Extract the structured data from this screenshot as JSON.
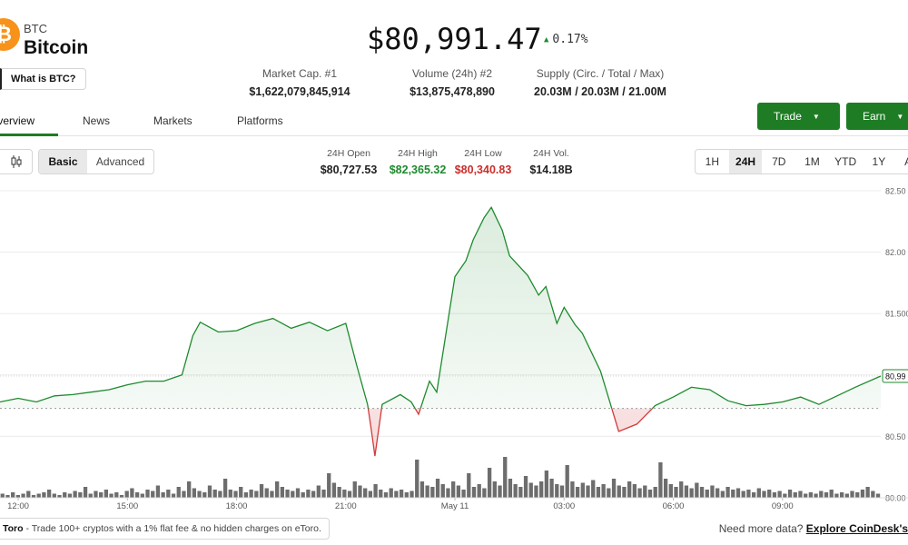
{
  "coin": {
    "logo_glyph": "₿",
    "symbol": "BTC",
    "name": "Bitcoin",
    "what_is_label": "What is BTC?",
    "brand_color": "#f7931a"
  },
  "quote": {
    "price": "$80,991.47",
    "change": "0.17%",
    "change_direction": "up"
  },
  "stats": [
    {
      "label": "Market Cap. #1",
      "value": "$1,622,079,845,914"
    },
    {
      "label": "Volume (24h) #2",
      "value": "$13,875,478,890"
    },
    {
      "label": "Supply (Circ. / Total / Max)",
      "value": "20.03M / 20.03M / 21.00M"
    }
  ],
  "tabs": [
    "Overview",
    "News",
    "Markets",
    "Platforms"
  ],
  "active_tab": "Overview",
  "buttons": {
    "trade": "Trade",
    "earn": "Earn"
  },
  "view_toggle": {
    "basic": "Basic",
    "advanced": "Advanced",
    "selected": "Basic"
  },
  "ohlc": [
    {
      "label": "24H Open",
      "value": "$80,727.53",
      "color": "#222222"
    },
    {
      "label": "24H High",
      "value": "$82,365.32",
      "color": "#1e8a2e"
    },
    {
      "label": "24H Low",
      "value": "$80,340.83",
      "color": "#c9302c"
    },
    {
      "label": "24H Vol.",
      "value": "$14.18B",
      "color": "#222222"
    }
  ],
  "ranges": [
    "1H",
    "24H",
    "7D",
    "1M",
    "YTD",
    "1Y",
    "A"
  ],
  "selected_range": "24H",
  "colors": {
    "up": "#1e8a2e",
    "down": "#d23a3a",
    "accent": "#1e7d24"
  },
  "chart_data": {
    "type": "line",
    "baseline": 80727.53,
    "ylim": [
      80000,
      82500
    ],
    "ytick_labels": [
      "82.50",
      "82.00",
      "81.500",
      "80,99",
      "80.50",
      "80.00"
    ],
    "ytick_values": [
      82500,
      82000,
      81500,
      80991.47,
      80500,
      80000
    ],
    "xlim": [
      11.5,
      35.7
    ],
    "xtick_labels": [
      "12:00",
      "15:00",
      "18:00",
      "21:00",
      "May 11",
      "03:00",
      "06:00",
      "09:00"
    ],
    "xtick_values": [
      12,
      15,
      18,
      21,
      24,
      27,
      30,
      33
    ],
    "price_x": [
      11.5,
      12.0,
      12.5,
      13.0,
      13.5,
      14.0,
      14.5,
      15.0,
      15.5,
      16.0,
      16.5,
      16.8,
      17.0,
      17.5,
      18.0,
      18.5,
      19.0,
      19.5,
      20.0,
      20.5,
      21.0,
      21.3,
      21.6,
      21.7,
      21.8,
      22.0,
      22.5,
      22.8,
      23.0,
      23.3,
      23.5,
      24.0,
      24.3,
      24.5,
      24.8,
      25.0,
      25.3,
      25.5,
      26.0,
      26.3,
      26.5,
      26.8,
      27.0,
      27.3,
      27.5,
      28.0,
      28.5,
      29.0,
      29.5,
      30.0,
      30.5,
      31.0,
      31.5,
      32.0,
      32.5,
      33.0,
      33.5,
      34.0,
      34.5,
      35.0,
      35.7
    ],
    "price": [
      80780,
      80810,
      80780,
      80830,
      80840,
      80860,
      80880,
      80920,
      80950,
      80950,
      81000,
      81320,
      81430,
      81350,
      81360,
      81420,
      81460,
      81380,
      81430,
      81360,
      81420,
      81080,
      80760,
      80560,
      80340,
      80760,
      80840,
      80780,
      80680,
      80950,
      80860,
      81800,
      81930,
      82100,
      82280,
      82365,
      82180,
      81970,
      81810,
      81650,
      81720,
      81420,
      81550,
      81410,
      81340,
      81030,
      80540,
      80600,
      80750,
      80820,
      80900,
      80880,
      80790,
      80750,
      80760,
      80780,
      80820,
      80760,
      80830,
      80900,
      80991
    ]
  },
  "footer": {
    "promo_brand": "Toro",
    "promo_text": "- Trade 100+ cryptos with a 1% flat fee & no hidden charges on eToro.",
    "more_text": "Need more data?",
    "more_link": "Explore CoinDesk's"
  }
}
